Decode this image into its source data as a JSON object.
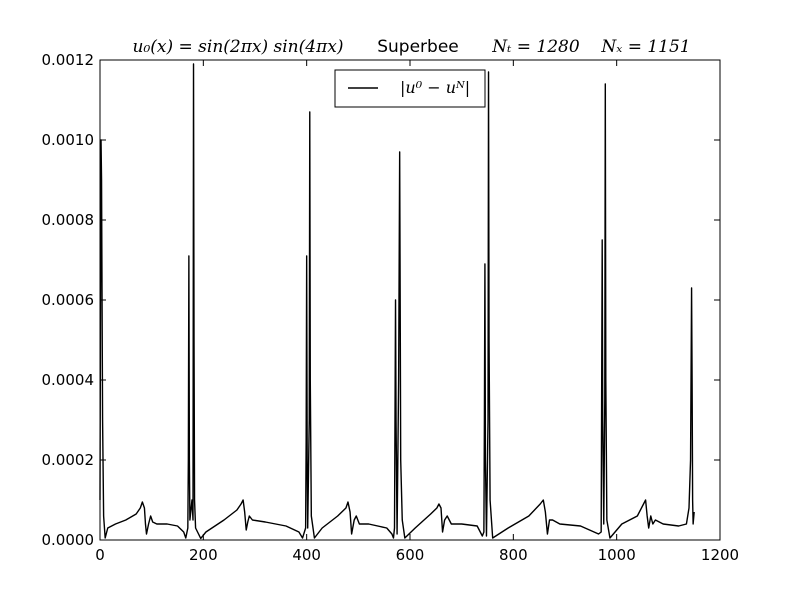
{
  "chart_data": {
    "type": "line",
    "title": {
      "initial_condition": "u₀(x) = sin(2πx) sin(4πx)",
      "scheme": "Superbee",
      "nt": "Nₜ = 1280",
      "nx": "Nₓ = 1151"
    },
    "xlabel": "",
    "ylabel": "",
    "xlim": [
      0,
      1200
    ],
    "ylim": [
      0,
      0.0012
    ],
    "x_ticks": [
      0,
      200,
      400,
      600,
      800,
      1000,
      1200
    ],
    "x_tick_labels": [
      "0",
      "200",
      "400",
      "600",
      "800",
      "1000",
      "1200"
    ],
    "y_ticks": [
      0,
      0.0002,
      0.0004,
      0.0006,
      0.0008,
      0.001,
      0.0012
    ],
    "y_tick_labels": [
      "0.0000",
      "0.0002",
      "0.0004",
      "0.0006",
      "0.0008",
      "0.0010",
      "0.0012"
    ],
    "grid": false,
    "legend": {
      "position": "top-center",
      "entries": [
        "|u⁰ − uᴺ|"
      ]
    },
    "series": [
      {
        "name": "|u⁰ − uᴺ|",
        "color": "#000000",
        "points": [
          [
            0,
            0.0001
          ],
          [
            1,
            0.0006
          ],
          [
            2,
            0.001
          ],
          [
            3,
            0.0009
          ],
          [
            5,
            0.0003
          ],
          [
            7,
            6e-05
          ],
          [
            10,
            5e-06
          ],
          [
            15,
            3e-05
          ],
          [
            30,
            4e-05
          ],
          [
            50,
            5e-05
          ],
          [
            70,
            6.5e-05
          ],
          [
            78,
            8e-05
          ],
          [
            82,
            9.5e-05
          ],
          [
            86,
            8e-05
          ],
          [
            88,
            4e-05
          ],
          [
            90,
            1.5e-05
          ],
          [
            94,
            4e-05
          ],
          [
            98,
            6e-05
          ],
          [
            102,
            4.5e-05
          ],
          [
            110,
            4e-05
          ],
          [
            130,
            4e-05
          ],
          [
            150,
            3.5e-05
          ],
          [
            162,
            2e-05
          ],
          [
            166,
            5e-06
          ],
          [
            170,
            3e-05
          ],
          [
            171,
            0.0002
          ],
          [
            172,
            0.00071
          ],
          [
            173,
            0.0002
          ],
          [
            174,
            5e-05
          ],
          [
            178,
            0.0001
          ],
          [
            180,
            5e-05
          ],
          [
            181,
            0.00119
          ],
          [
            182,
            0.0005
          ],
          [
            183,
            0.0001
          ],
          [
            185,
            3e-05
          ],
          [
            195,
            4e-06
          ],
          [
            205,
            2e-05
          ],
          [
            240,
            5e-05
          ],
          [
            265,
            7.5e-05
          ],
          [
            273,
            9e-05
          ],
          [
            277,
            0.0001
          ],
          [
            280,
            7e-05
          ],
          [
            283,
            2.5e-05
          ],
          [
            286,
            4.5e-05
          ],
          [
            289,
            6e-05
          ],
          [
            295,
            5e-05
          ],
          [
            320,
            4.5e-05
          ],
          [
            360,
            3.5e-05
          ],
          [
            385,
            2e-05
          ],
          [
            392,
            5e-06
          ],
          [
            398,
            3e-05
          ],
          [
            399,
            0.00025
          ],
          [
            400,
            0.00071
          ],
          [
            401,
            0.0002
          ],
          [
            402,
            3e-05
          ],
          [
            405,
            0.0003
          ],
          [
            406,
            0.00107
          ],
          [
            407,
            0.0004
          ],
          [
            409,
            6e-05
          ],
          [
            415,
            5e-06
          ],
          [
            430,
            3e-05
          ],
          [
            460,
            6e-05
          ],
          [
            476,
            8e-05
          ],
          [
            480,
            9.5e-05
          ],
          [
            484,
            7e-05
          ],
          [
            487,
            1.5e-05
          ],
          [
            492,
            5e-05
          ],
          [
            496,
            6e-05
          ],
          [
            502,
            4e-05
          ],
          [
            520,
            4e-05
          ],
          [
            555,
            3e-05
          ],
          [
            565,
            1.5e-05
          ],
          [
            568,
            5e-06
          ],
          [
            570,
            3e-05
          ],
          [
            572,
            0.0006
          ],
          [
            573,
            0.0003
          ],
          [
            575,
            1.5e-05
          ],
          [
            578,
            0.0004
          ],
          [
            580,
            0.00097
          ],
          [
            581,
            0.0006
          ],
          [
            582,
            0.0002
          ],
          [
            585,
            5e-05
          ],
          [
            590,
            5e-06
          ],
          [
            610,
            3e-05
          ],
          [
            640,
            6.5e-05
          ],
          [
            652,
            8e-05
          ],
          [
            656,
            9e-05
          ],
          [
            660,
            8e-05
          ],
          [
            663,
            2e-05
          ],
          [
            667,
            5e-05
          ],
          [
            672,
            6e-05
          ],
          [
            680,
            4e-05
          ],
          [
            700,
            4e-05
          ],
          [
            730,
            3.5e-05
          ],
          [
            740,
            1e-05
          ],
          [
            743,
            2e-05
          ],
          [
            744,
            0.0003
          ],
          [
            745,
            0.00069
          ],
          [
            746,
            0.0002
          ],
          [
            748,
            1e-05
          ],
          [
            751,
            0.0003
          ],
          [
            752,
            0.00117
          ],
          [
            753,
            0.0005
          ],
          [
            755,
            0.0001
          ],
          [
            760,
            5e-06
          ],
          [
            790,
            3e-05
          ],
          [
            830,
            6e-05
          ],
          [
            852,
            9e-05
          ],
          [
            858,
            0.0001
          ],
          [
            862,
            7e-05
          ],
          [
            866,
            1.5e-05
          ],
          [
            870,
            5e-05
          ],
          [
            876,
            5e-05
          ],
          [
            890,
            4e-05
          ],
          [
            930,
            3.5e-05
          ],
          [
            965,
            1.5e-05
          ],
          [
            970,
            2e-05
          ],
          [
            972,
            0.00075
          ],
          [
            973,
            0.0003
          ],
          [
            975,
            4e-05
          ],
          [
            977,
            0.00035
          ],
          [
            978,
            0.00114
          ],
          [
            979,
            0.0004
          ],
          [
            981,
            5e-05
          ],
          [
            987,
            5e-06
          ],
          [
            1010,
            4e-05
          ],
          [
            1040,
            6e-05
          ],
          [
            1052,
            9e-05
          ],
          [
            1056,
            0.0001
          ],
          [
            1059,
            6e-05
          ],
          [
            1062,
            3e-05
          ],
          [
            1066,
            6e-05
          ],
          [
            1070,
            4e-05
          ],
          [
            1075,
            5e-05
          ],
          [
            1090,
            4e-05
          ],
          [
            1120,
            3.5e-05
          ],
          [
            1135,
            4e-05
          ],
          [
            1140,
            8e-05
          ],
          [
            1143,
            0.0002
          ],
          [
            1145,
            0.00063
          ],
          [
            1146,
            0.0004
          ],
          [
            1147,
            0.0001
          ],
          [
            1148,
            4e-05
          ],
          [
            1150,
            7e-05
          ]
        ]
      }
    ]
  }
}
